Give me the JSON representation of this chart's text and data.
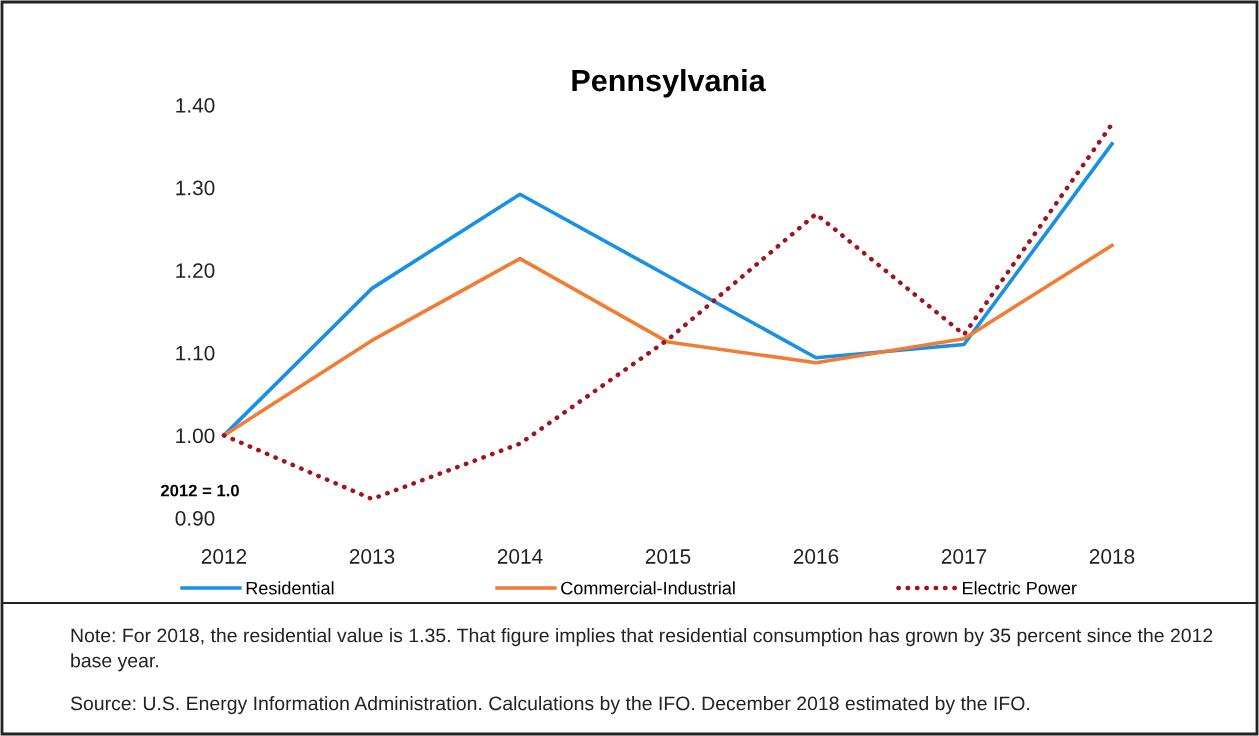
{
  "chart_data": {
    "type": "line",
    "title": "Pennsylvania",
    "categories": [
      "2012",
      "2013",
      "2014",
      "2015",
      "2016",
      "2017",
      "2018"
    ],
    "series": [
      {
        "name": "Residential",
        "color": "#1a8fe3",
        "line_style": "solid",
        "values": [
          1.0,
          1.178,
          1.292,
          1.193,
          1.094,
          1.11,
          1.353
        ]
      },
      {
        "name": "Commercial-Industrial",
        "color": "#f07d36",
        "line_style": "solid",
        "values": [
          1.0,
          1.115,
          1.214,
          1.113,
          1.088,
          1.117,
          1.23
        ]
      },
      {
        "name": "Electric Power",
        "color": "#a0141e",
        "line_style": "dotted",
        "values": [
          1.0,
          0.923,
          0.99,
          1.116,
          1.268,
          1.122,
          1.377
        ]
      }
    ],
    "ylim": [
      0.9,
      1.4
    ],
    "yticks": [
      {
        "value": 0.9,
        "label": "0.90"
      },
      {
        "value": 1.0,
        "label": "1.00"
      },
      {
        "value": 1.1,
        "label": "1.10"
      },
      {
        "value": 1.2,
        "label": "1.20"
      },
      {
        "value": 1.3,
        "label": "1.30"
      },
      {
        "value": 1.4,
        "label": "1.40"
      }
    ],
    "grid": false,
    "legend": "bottom",
    "marker": "none",
    "annotations": [
      "2012 = 1.0",
      "Note: For 2018, the residential value is 1.35. That figure implies that residential consumption has grown by 35 percent since the 2012 base year.",
      "Source: U.S. Energy Information Administration. Calculations by the IFO. December 2018 estimated by the IFO."
    ]
  }
}
